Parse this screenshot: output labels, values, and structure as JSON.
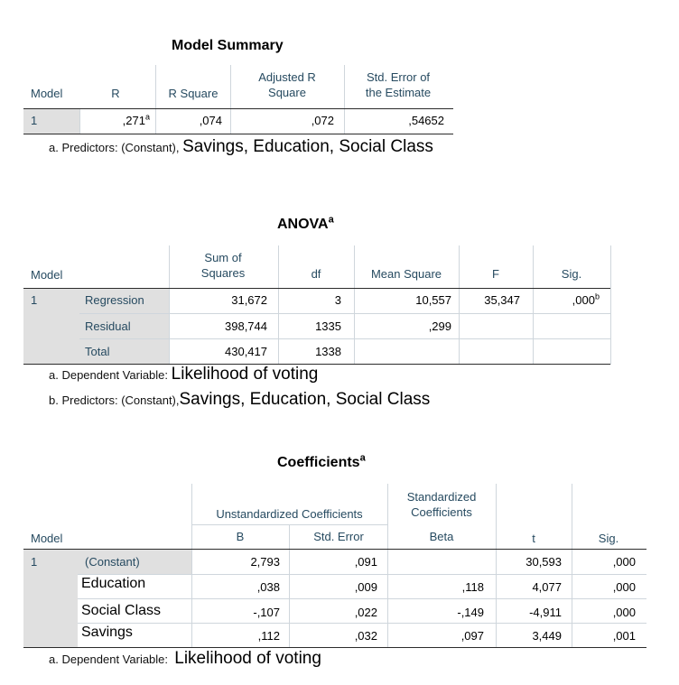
{
  "model_summary": {
    "title": "Model Summary",
    "headers": [
      "Model",
      "R",
      "R Square",
      "Adjusted R Square",
      "Std. Error of the Estimate"
    ],
    "headers_line2": {
      "adjusted": "Square",
      "stderr": "the Estimate"
    },
    "headers_line1": {
      "adjusted": "Adjusted R",
      "stderr": "Std. Error of"
    },
    "row": {
      "model": "1",
      "r": ",271",
      "r_sup": "a",
      "r_square": ",074",
      "adj_r_square": ",072",
      "std_error": ",54652"
    },
    "footnote_prefix": "a. Predictors: (Constant),",
    "footnote_text": "Savings, Education, Social Class"
  },
  "anova": {
    "title": "ANOVA",
    "title_sup": "a",
    "headers": {
      "model": "Model",
      "ss_line1": "Sum of",
      "ss_line2": "Squares",
      "df": "df",
      "ms": "Mean Square",
      "f": "F",
      "sig": "Sig."
    },
    "model_num": "1",
    "rows": [
      {
        "label": "Regression",
        "ss": "31,672",
        "df": "3",
        "ms": "10,557",
        "f": "35,347",
        "sig": ",000",
        "sig_sup": "b"
      },
      {
        "label": "Residual",
        "ss": "398,744",
        "df": "1335",
        "ms": ",299",
        "f": "",
        "sig": "",
        "sig_sup": ""
      },
      {
        "label": "Total",
        "ss": "430,417",
        "df": "1338",
        "ms": "",
        "f": "",
        "sig": "",
        "sig_sup": ""
      }
    ],
    "footnote_a_prefix": "a. Dependent Variable:",
    "footnote_a_text": "Likelihood of voting",
    "footnote_b_prefix": "b. Predictors: (Constant),",
    "footnote_b_text": "Savings, Education, Social Class"
  },
  "coefficients": {
    "title": "Coefficients",
    "title_sup": "a",
    "headers": {
      "model": "Model",
      "unstd": "Unstandardized Coefficients",
      "std_line1": "Standardized",
      "std_line2": "Coefficients",
      "b": "B",
      "se": "Std. Error",
      "beta": "Beta",
      "t": "t",
      "sig": "Sig."
    },
    "model_num": "1",
    "rows": [
      {
        "label": "(Constant)",
        "b": "2,793",
        "se": ",091",
        "beta": "",
        "t": "30,593",
        "sig": ",000"
      },
      {
        "label": "Education",
        "b": ",038",
        "se": ",009",
        "beta": ",118",
        "t": "4,077",
        "sig": ",000"
      },
      {
        "label": "Social Class",
        "b": "-,107",
        "se": ",022",
        "beta": "-,149",
        "t": "-4,911",
        "sig": ",000"
      },
      {
        "label": "Savings",
        "b": ",112",
        "se": ",032",
        "beta": ",097",
        "t": "3,449",
        "sig": ",001"
      }
    ],
    "footnote_prefix": "a. Dependent Variable:",
    "footnote_text": "Likelihood of voting"
  }
}
